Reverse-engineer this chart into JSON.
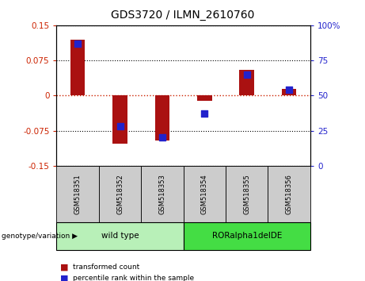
{
  "title": "GDS3720 / ILMN_2610760",
  "samples": [
    "GSM518351",
    "GSM518352",
    "GSM518353",
    "GSM518354",
    "GSM518355",
    "GSM518356"
  ],
  "red_values": [
    0.12,
    -0.102,
    -0.096,
    -0.012,
    0.055,
    0.014
  ],
  "blue_values_pct": [
    87,
    28,
    20,
    37,
    65,
    54
  ],
  "ylim_left": [
    -0.15,
    0.15
  ],
  "ylim_right": [
    0,
    100
  ],
  "left_ticks": [
    -0.15,
    -0.075,
    0,
    0.075,
    0.15
  ],
  "right_ticks": [
    0,
    25,
    50,
    75,
    100
  ],
  "left_tick_labels": [
    "-0.15",
    "-0.075",
    "0",
    "0.075",
    "0.15"
  ],
  "right_tick_labels": [
    "0",
    "25",
    "50",
    "75",
    "100%"
  ],
  "legend_red": "transformed count",
  "legend_blue": "percentile rank within the sample",
  "bar_color": "#aa1111",
  "dot_color": "#2222cc",
  "zero_line_color": "#cc2200",
  "bg_color": "#ffffff",
  "plot_bg": "#ffffff",
  "bar_width": 0.35,
  "dot_size": 40,
  "group_bg_light": "#b8f0b8",
  "group_bg_dark": "#44dd44",
  "sample_bg": "#cccccc",
  "wt_count": 3,
  "ror_count": 3
}
